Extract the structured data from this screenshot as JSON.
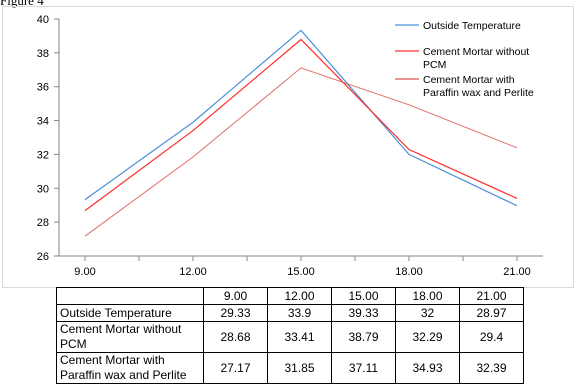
{
  "top_text": "Figure 4",
  "chart_data": {
    "type": "line",
    "categories": [
      "9.00",
      "12.00",
      "15.00",
      "18.00",
      "21.00"
    ],
    "ylim": [
      26,
      40
    ],
    "yticks": [
      26,
      28,
      30,
      32,
      34,
      36,
      38,
      40
    ],
    "grid": false,
    "legend_position": "top-right",
    "series": [
      {
        "name": "Outside Temperature",
        "values": [
          29.33,
          33.9,
          39.33,
          32,
          28.97
        ],
        "color": "#4a90d9"
      },
      {
        "name": "Cement Mortar without PCM",
        "values": [
          28.68,
          33.41,
          38.79,
          32.29,
          29.4
        ],
        "color": "#ff2b2b"
      },
      {
        "name": "Cement Mortar with Paraffin wax and Perlite",
        "values": [
          27.17,
          31.85,
          37.11,
          34.93,
          32.39
        ],
        "color": "#d9534f"
      }
    ],
    "legend_lines": [
      [
        "Outside Temperature"
      ],
      [
        "Cement Mortar without",
        "PCM"
      ],
      [
        "Cement Mortar with",
        "Paraffin wax and Perlite"
      ]
    ]
  },
  "table": {
    "header": [
      "",
      "9.00",
      "12.00",
      "15.00",
      "18.00",
      "21.00"
    ],
    "rows": [
      {
        "label": "Outside Temperature",
        "values": [
          "29.33",
          "33.9",
          "39.33",
          "32",
          "28.97"
        ]
      },
      {
        "label": "Cement Mortar without PCM",
        "values": [
          "28.68",
          "33.41",
          "38.79",
          "32.29",
          "29.4"
        ]
      },
      {
        "label": "Cement Mortar with Paraffin wax and Perlite",
        "values": [
          "27.17",
          "31.85",
          "37.11",
          "34.93",
          "32.39"
        ]
      }
    ]
  }
}
